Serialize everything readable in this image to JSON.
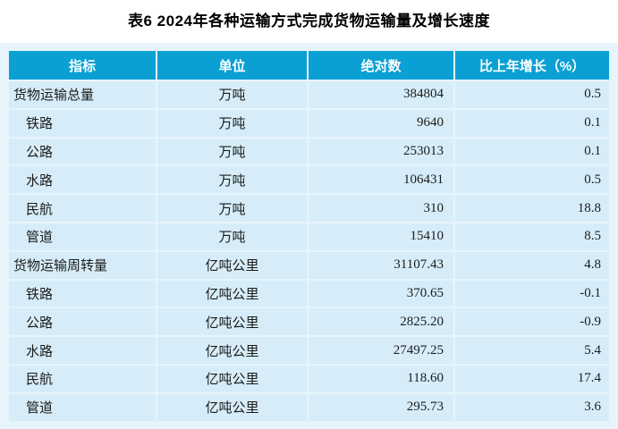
{
  "title": "表6 2024年各种运输方式完成货物运输量及增长速度",
  "colors": {
    "header_bg": "#0aa0d4",
    "header_text": "#ffffff",
    "row_bg": "#d6edf9",
    "frame_bg": "#e7f4fb",
    "grid": "#ffffff",
    "body_text": "#1b1b1b",
    "title_text": "#000000"
  },
  "table": {
    "headers": [
      "指标",
      "单位",
      "绝对数",
      "比上年增长（%）"
    ],
    "rows": [
      {
        "indicator": "货物运输总量",
        "unit": "万吨",
        "value": "384804",
        "growth": "0.5",
        "parent": true
      },
      {
        "indicator": "铁路",
        "unit": "万吨",
        "value": "9640",
        "growth": "0.1",
        "parent": false
      },
      {
        "indicator": "公路",
        "unit": "万吨",
        "value": "253013",
        "growth": "0.1",
        "parent": false
      },
      {
        "indicator": "水路",
        "unit": "万吨",
        "value": "106431",
        "growth": "0.5",
        "parent": false
      },
      {
        "indicator": "民航",
        "unit": "万吨",
        "value": "310",
        "growth": "18.8",
        "parent": false
      },
      {
        "indicator": "管道",
        "unit": "万吨",
        "value": "15410",
        "growth": "8.5",
        "parent": false
      },
      {
        "indicator": "货物运输周转量",
        "unit": "亿吨公里",
        "value": "31107.43",
        "growth": "4.8",
        "parent": true
      },
      {
        "indicator": "铁路",
        "unit": "亿吨公里",
        "value": "370.65",
        "growth": "-0.1",
        "parent": false
      },
      {
        "indicator": "公路",
        "unit": "亿吨公里",
        "value": "2825.20",
        "growth": "-0.9",
        "parent": false
      },
      {
        "indicator": "水路",
        "unit": "亿吨公里",
        "value": "27497.25",
        "growth": "5.4",
        "parent": false
      },
      {
        "indicator": "民航",
        "unit": "亿吨公里",
        "value": "118.60",
        "growth": "17.4",
        "parent": false
      },
      {
        "indicator": "管道",
        "unit": "亿吨公里",
        "value": "295.73",
        "growth": "3.6",
        "parent": false
      }
    ]
  }
}
